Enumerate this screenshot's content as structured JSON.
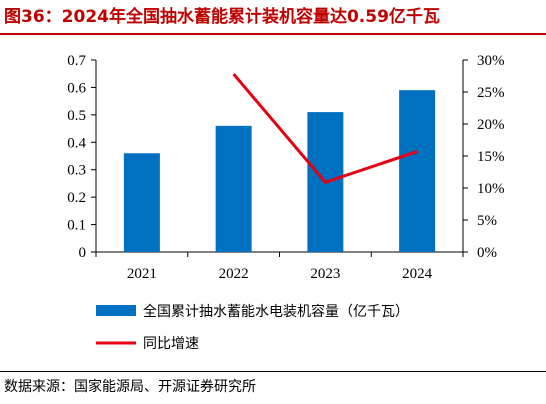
{
  "title": "图36：2024年全国抽水蓄能累计装机容量达0.59亿千瓦",
  "source": "数据来源：国家能源局、开源证券研究所",
  "colors": {
    "title": "#c00000",
    "bar": "#0070c0",
    "line": "#e60012",
    "axis": "#000000"
  },
  "chart_data": {
    "type": "bar+line",
    "categories": [
      "2021",
      "2022",
      "2023",
      "2024"
    ],
    "series": [
      {
        "name": "全国累计抽水蓄能水电装机容量（亿千瓦）",
        "type": "bar",
        "axis": "left",
        "values": [
          0.36,
          0.46,
          0.51,
          0.59
        ]
      },
      {
        "name": "同比增速",
        "type": "line",
        "axis": "right",
        "values": [
          null,
          27.8,
          10.9,
          15.7
        ]
      }
    ],
    "y_left": {
      "ylim": [
        0,
        0.7
      ],
      "ticks": [
        "0",
        "0.1",
        "0.2",
        "0.3",
        "0.4",
        "0.5",
        "0.6",
        "0.7"
      ]
    },
    "y_right": {
      "ylim": [
        0,
        30
      ],
      "ticks": [
        "0%",
        "5%",
        "10%",
        "15%",
        "20%",
        "25%",
        "30%"
      ]
    },
    "grid": false,
    "legend": "bottom-left"
  }
}
